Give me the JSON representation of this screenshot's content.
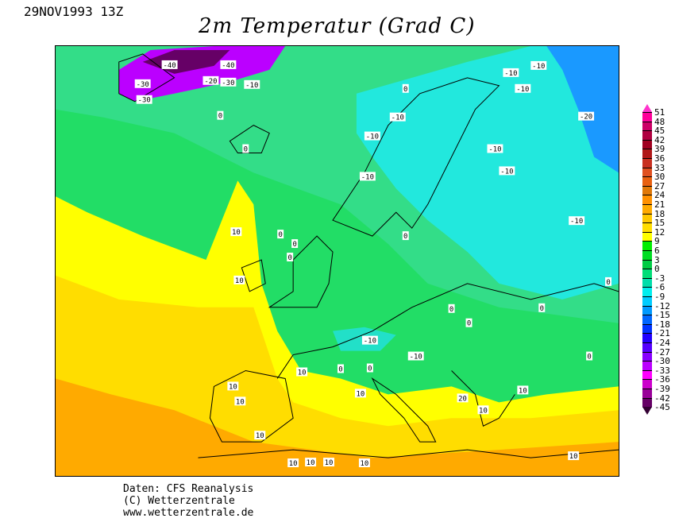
{
  "header": {
    "date": "29NOV1993 13Z",
    "title": "2m Temperatur (Grad C)"
  },
  "credits": {
    "line1": "Daten: CFS Reanalysis",
    "line2": "(C) Wetterzentrale",
    "line3": "www.wetterzentrale.de"
  },
  "legend": {
    "ticks": [
      "51",
      "48",
      "45",
      "42",
      "39",
      "36",
      "33",
      "30",
      "27",
      "24",
      "21",
      "18",
      "15",
      "12",
      "9",
      "6",
      "3",
      "0",
      "-3",
      "-6",
      "-9",
      "-12",
      "-15",
      "-18",
      "-21",
      "-24",
      "-27",
      "-30",
      "-33",
      "-36",
      "-39",
      "-42",
      "-45"
    ],
    "colors": [
      "#ff33cc",
      "#ff0099",
      "#cc0066",
      "#b00040",
      "#a00020",
      "#b01818",
      "#c83020",
      "#e05020",
      "#e86010",
      "#e07808",
      "#ff9000",
      "#ffaa00",
      "#ffc800",
      "#ffdd00",
      "#ffff00",
      "#00ee00",
      "#00dd22",
      "#00cc44",
      "#00dd77",
      "#00ddaa",
      "#00eeee",
      "#00ccff",
      "#0099ff",
      "#0066ff",
      "#0033ff",
      "#2200ff",
      "#5500ff",
      "#8800ff",
      "#bb00ff",
      "#ff00ff",
      "#cc00cc",
      "#990099",
      "#660066",
      "#330033"
    ]
  },
  "contour_labels": [
    "-40",
    "-40",
    "-30",
    "-30",
    "-20",
    "-30",
    "-10",
    "0",
    "0",
    "-10",
    "-10",
    "-10",
    "-10",
    "-10",
    "-10",
    "-20",
    "-10",
    "-10",
    "-10",
    "0",
    "0",
    "0",
    "10",
    "10",
    "0",
    "0",
    "0",
    "0",
    "-10",
    "-10",
    "0",
    "0",
    "0",
    "10",
    "0",
    "10",
    "10",
    "10",
    "10",
    "10",
    "10",
    "10",
    "10",
    "10",
    "10",
    "20",
    "10",
    "0"
  ]
}
